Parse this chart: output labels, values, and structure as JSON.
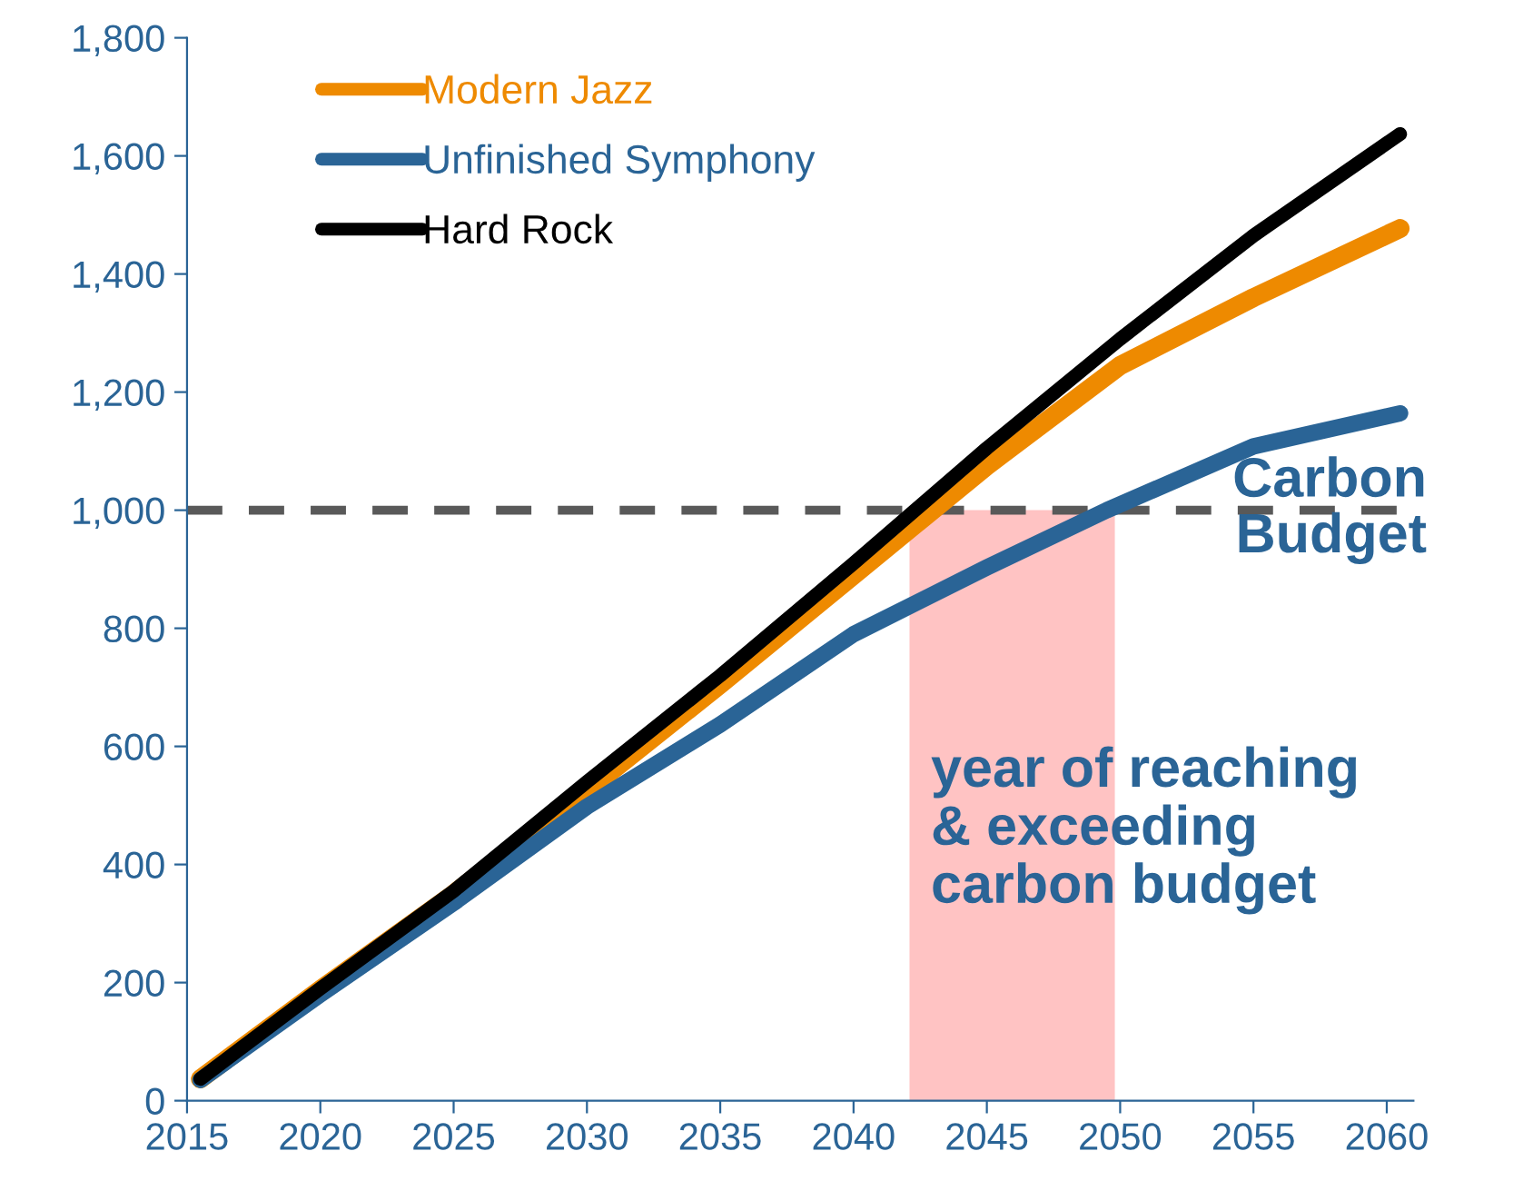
{
  "chart_data": {
    "type": "line",
    "x": [
      2015.5,
      2020,
      2025,
      2030,
      2035,
      2040,
      2045,
      2050,
      2055,
      2060.5
    ],
    "series": [
      {
        "name": "Modern Jazz",
        "color": "#ee8a00",
        "values": [
          37,
          188,
          350,
          525,
          705,
          890,
          1075,
          1245,
          1360,
          1477
        ]
      },
      {
        "name": "Unfinished Symphony",
        "color": "#2a6496",
        "x": [
          2015.5,
          2020,
          2025,
          2030,
          2035,
          2040,
          2045,
          2049.5,
          2055,
          2060.5
        ],
        "values": [
          35,
          180,
          335,
          498,
          637,
          790,
          903,
          1000,
          1108,
          1164
        ]
      },
      {
        "name": "Hard Rock",
        "color": "#000000",
        "values": [
          37,
          190,
          355,
          540,
          720,
          910,
          1105,
          1290,
          1465,
          1637
        ]
      }
    ],
    "xlim": [
      2015,
      2061
    ],
    "xticks": [
      2015,
      2020,
      2025,
      2030,
      2035,
      2040,
      2045,
      2050,
      2055,
      2060
    ],
    "ylim": [
      0,
      1800
    ],
    "yticks": [
      {
        "value": 0,
        "label": "0"
      },
      {
        "value": 200,
        "label": "200"
      },
      {
        "value": 400,
        "label": "400"
      },
      {
        "value": 600,
        "label": "600"
      },
      {
        "value": 800,
        "label": "800"
      },
      {
        "value": 1000,
        "label": "1,000"
      },
      {
        "value": 1200,
        "label": "1,200"
      },
      {
        "value": 1400,
        "label": "1,400"
      },
      {
        "value": 1600,
        "label": "1,600"
      },
      {
        "value": 1800,
        "label": "1,800"
      }
    ],
    "ref_lines": [
      {
        "axis": "y",
        "value": 1000,
        "label": "Carbon\nBudget",
        "color": "#595959",
        "line_style": "dashed"
      }
    ],
    "bands": [
      {
        "axis": "x",
        "from": 2042.1,
        "to": 2049.8,
        "label": "year of reaching\n& exceeding\ncarbon budget",
        "color": "#ffaaaa"
      }
    ],
    "legend": "top left",
    "grid": false,
    "marker": "none",
    "line_style": "solid"
  }
}
